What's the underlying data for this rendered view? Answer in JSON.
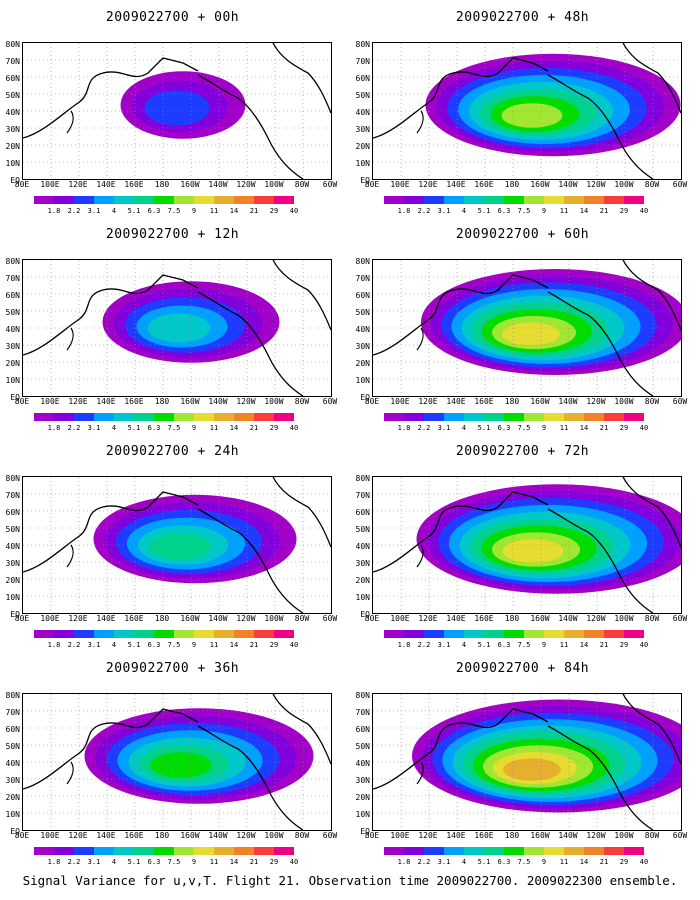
{
  "panels": [
    {
      "title": "2009022700 + 00h",
      "intensity": 0.25
    },
    {
      "title": "2009022700 + 48h",
      "intensity": 0.75
    },
    {
      "title": "2009022700 + 12h",
      "intensity": 0.45
    },
    {
      "title": "2009022700 + 60h",
      "intensity": 0.8
    },
    {
      "title": "2009022700 + 24h",
      "intensity": 0.55
    },
    {
      "title": "2009022700 + 72h",
      "intensity": 0.85
    },
    {
      "title": "2009022700 + 36h",
      "intensity": 0.65
    },
    {
      "title": "2009022700 + 84h",
      "intensity": 0.9
    }
  ],
  "lat_labels": [
    "80N",
    "70N",
    "60N",
    "50N",
    "40N",
    "30N",
    "20N",
    "10N",
    "EQ"
  ],
  "lon_labels": [
    "80E",
    "100E",
    "120E",
    "140E",
    "160E",
    "180",
    "160W",
    "140W",
    "120W",
    "100W",
    "80W",
    "60W"
  ],
  "colorbar": {
    "labels": [
      "1.8",
      "2.2",
      "3.1",
      "4",
      "5.1",
      "6.3",
      "7.5",
      "9",
      "11",
      "14",
      "21",
      "29",
      "40"
    ],
    "colors": [
      "#a000c8",
      "#8200dc",
      "#1e3cff",
      "#00a0ff",
      "#00c8c8",
      "#00d28c",
      "#00dc00",
      "#a0e632",
      "#e6dc32",
      "#e6af2d",
      "#f08228",
      "#fa3c3c",
      "#f00082"
    ]
  },
  "caption": "Signal Variance for u,v,T. Flight 21. Observation time 2009022700. 2009022300 ensemble."
}
